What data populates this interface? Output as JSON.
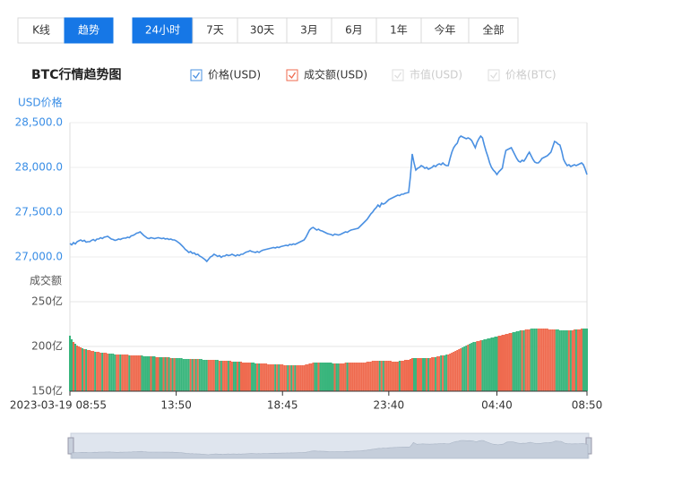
{
  "controls": {
    "view_tabs": [
      "K线",
      "趋势"
    ],
    "view_active": 1,
    "range_tabs": [
      "24小时",
      "7天",
      "30天",
      "3月",
      "6月",
      "1年",
      "今年",
      "全部"
    ],
    "range_active": 0
  },
  "chart_data": {
    "type": "line_volume",
    "title": "BTC行情趋势图",
    "inactive_legend": [
      "市值(USD)",
      "价格(BTC)"
    ],
    "y_label": "USD价格",
    "y2_label": "成交额",
    "ylim": [
      26750,
      28500
    ],
    "yticks": [
      {
        "value": 27000,
        "label": "27,000.0"
      },
      {
        "value": 27500,
        "label": "27,500.0"
      },
      {
        "value": 28000,
        "label": "28,000.0"
      },
      {
        "value": 28500,
        "label": "28,500.0"
      }
    ],
    "y2lim": [
      150,
      250
    ],
    "y2ticks": [
      {
        "value": 150,
        "label": "150亿"
      },
      {
        "value": 200,
        "label": "200亿"
      },
      {
        "value": 250,
        "label": "250亿"
      }
    ],
    "up_color": "#ef6a4e",
    "down_color": "#38b57c",
    "grid": true,
    "categories": [
      "2023-03-19 08:55",
      null,
      null,
      null,
      null,
      null,
      null,
      null,
      null,
      null,
      null,
      null,
      null,
      null,
      null,
      null,
      null,
      null,
      null,
      null,
      null,
      null,
      null,
      null,
      null,
      null,
      null,
      null,
      null,
      null,
      null,
      null,
      null,
      null,
      null,
      null,
      null,
      null,
      null,
      null,
      null,
      null,
      null,
      null,
      null,
      null,
      null,
      null,
      null,
      null,
      null,
      null,
      null,
      null,
      null,
      null,
      null,
      null,
      null,
      "13:50",
      null,
      null,
      null,
      null,
      null,
      null,
      null,
      null,
      null,
      null,
      null,
      null,
      null,
      null,
      null,
      null,
      null,
      null,
      null,
      null,
      null,
      null,
      null,
      null,
      null,
      null,
      null,
      null,
      null,
      null,
      null,
      null,
      null,
      null,
      null,
      null,
      null,
      null,
      null,
      null,
      null,
      null,
      null,
      null,
      null,
      null,
      null,
      null,
      null,
      null,
      null,
      null,
      null,
      null,
      null,
      null,
      null,
      null,
      "18:45",
      null,
      null,
      null,
      null,
      null,
      null,
      null,
      null,
      null,
      null,
      null,
      null,
      null,
      null,
      null,
      null,
      null,
      null,
      null,
      null,
      null,
      null,
      null,
      null,
      null,
      null,
      null,
      null,
      null,
      null,
      null,
      null,
      null,
      null,
      null,
      null,
      null,
      null,
      null,
      null,
      null,
      null,
      null,
      null,
      null,
      null,
      null,
      null,
      null,
      null,
      null,
      null,
      null,
      null,
      null,
      null,
      null,
      null,
      "23:40",
      null,
      null,
      null,
      null,
      null,
      null,
      null,
      null,
      null,
      null,
      null,
      null,
      null,
      null,
      null,
      null,
      null,
      null,
      null,
      null,
      null,
      null,
      null,
      null,
      null,
      null,
      null,
      null,
      null,
      null,
      null,
      null,
      null,
      null,
      null,
      null,
      null,
      null,
      null,
      null,
      null,
      null,
      null,
      null,
      null,
      null,
      null,
      null,
      null,
      null,
      null,
      null,
      null,
      null,
      null,
      null,
      null,
      null,
      null,
      "04:40",
      null,
      null,
      null,
      null,
      null,
      null,
      null,
      null,
      null,
      null,
      null,
      null,
      null,
      null,
      null,
      null,
      null,
      null,
      null,
      null,
      null,
      null,
      null,
      null,
      null,
      null,
      null,
      null,
      null,
      null,
      null,
      null,
      null,
      null,
      null,
      null,
      null,
      null,
      null,
      null,
      null,
      null,
      null,
      null,
      null,
      null,
      null,
      null,
      null,
      "08:50"
    ],
    "series": [
      {
        "name": "价格(USD)",
        "color": "#4a90e2",
        "values": [
          27150,
          27135,
          27160,
          27145,
          27170,
          27180,
          27190,
          27175,
          27185,
          27165,
          27170,
          27170,
          27185,
          27195,
          27180,
          27200,
          27200,
          27215,
          27205,
          27220,
          27225,
          27230,
          27215,
          27200,
          27195,
          27185,
          27190,
          27200,
          27195,
          27205,
          27210,
          27210,
          27220,
          27215,
          27235,
          27240,
          27250,
          27265,
          27270,
          27280,
          27260,
          27240,
          27225,
          27210,
          27205,
          27215,
          27210,
          27205,
          27210,
          27215,
          27210,
          27205,
          27210,
          27200,
          27205,
          27195,
          27200,
          27190,
          27190,
          27180,
          27165,
          27150,
          27130,
          27110,
          27085,
          27070,
          27050,
          27060,
          27040,
          27045,
          27025,
          27030,
          27010,
          27000,
          26985,
          26970,
          26950,
          26975,
          27000,
          27010,
          27030,
          27020,
          27005,
          27015,
          26995,
          27010,
          27010,
          27025,
          27015,
          27020,
          27030,
          27020,
          27010,
          27025,
          27015,
          27030,
          27030,
          27045,
          27055,
          27060,
          27070,
          27060,
          27055,
          27050,
          27060,
          27050,
          27065,
          27075,
          27080,
          27085,
          27090,
          27095,
          27100,
          27105,
          27100,
          27110,
          27105,
          27115,
          27120,
          27125,
          27130,
          27125,
          27140,
          27135,
          27145,
          27140,
          27150,
          27160,
          27170,
          27180,
          27190,
          27220,
          27260,
          27300,
          27320,
          27330,
          27315,
          27300,
          27310,
          27295,
          27290,
          27280,
          27270,
          27260,
          27255,
          27250,
          27240,
          27255,
          27250,
          27245,
          27250,
          27260,
          27270,
          27280,
          27275,
          27290,
          27300,
          27305,
          27310,
          27315,
          27320,
          27340,
          27360,
          27380,
          27400,
          27420,
          27450,
          27480,
          27500,
          27530,
          27550,
          27580,
          27560,
          27600,
          27590,
          27600,
          27620,
          27640,
          27650,
          27660,
          27670,
          27680,
          27690,
          27685,
          27700,
          27700,
          27710,
          27715,
          27720,
          27900,
          28150,
          28050,
          27970,
          27990,
          28000,
          28020,
          28010,
          27990,
          28000,
          27980,
          27990,
          28000,
          28020,
          28010,
          28030,
          28040,
          28030,
          28050,
          28030,
          28020,
          28020,
          28100,
          28170,
          28220,
          28250,
          28270,
          28330,
          28350,
          28340,
          28330,
          28320,
          28330,
          28320,
          28300,
          28260,
          28220,
          28280,
          28320,
          28350,
          28330,
          28250,
          28180,
          28120,
          28050,
          28000,
          27970,
          27950,
          27920,
          27950,
          27970,
          27990,
          28100,
          28190,
          28200,
          28210,
          28220,
          28180,
          28140,
          28100,
          28070,
          28060,
          28080,
          28070,
          28100,
          28140,
          28170,
          28130,
          28090,
          28060,
          28050,
          28050,
          28070,
          28100,
          28110,
          28120,
          28130,
          28150,
          28170,
          28230,
          28290,
          28280,
          28260,
          28250,
          28180,
          28090,
          28050,
          28020,
          28030,
          28010,
          28020,
          28030,
          28020,
          28030,
          28040,
          28050,
          28030,
          27980,
          27920
        ]
      },
      {
        "name": "成交额(USD)",
        "color": "#ef6a4e",
        "axis": "y2",
        "values": [
          212,
          208,
          205,
          203,
          201,
          200,
          199,
          198,
          197,
          197,
          196,
          196,
          195,
          195,
          194,
          194,
          194,
          193,
          193,
          193,
          193,
          192,
          192,
          192,
          192,
          191,
          191,
          191,
          191,
          191,
          191,
          191,
          191,
          190,
          190,
          190,
          190,
          190,
          190,
          190,
          190,
          189,
          189,
          189,
          189,
          189,
          189,
          189,
          188,
          188,
          188,
          188,
          188,
          188,
          188,
          188,
          187,
          187,
          187,
          187,
          187,
          187,
          187,
          186,
          186,
          186,
          186,
          186,
          186,
          186,
          186,
          186,
          186,
          186,
          185,
          185,
          185,
          185,
          185,
          185,
          185,
          185,
          185,
          184,
          184,
          184,
          184,
          184,
          184,
          184,
          183,
          183,
          183,
          183,
          183,
          183,
          182,
          182,
          182,
          182,
          182,
          182,
          182,
          181,
          181,
          181,
          181,
          181,
          181,
          181,
          180,
          180,
          180,
          180,
          180,
          180,
          180,
          180,
          180,
          179,
          179,
          179,
          179,
          179,
          179,
          179,
          179,
          179,
          179,
          179,
          179,
          180,
          180,
          181,
          181,
          182,
          182,
          182,
          182,
          182,
          182,
          182,
          182,
          182,
          182,
          182,
          181,
          181,
          181,
          181,
          181,
          181,
          181,
          182,
          182,
          182,
          182,
          182,
          182,
          182,
          182,
          182,
          182,
          182,
          182,
          183,
          183,
          183,
          184,
          184,
          184,
          184,
          184,
          184,
          184,
          184,
          184,
          184,
          184,
          183,
          183,
          183,
          183,
          184,
          184,
          184,
          185,
          185,
          185,
          186,
          187,
          187,
          187,
          187,
          187,
          187,
          187,
          187,
          187,
          187,
          187,
          188,
          188,
          188,
          189,
          189,
          190,
          190,
          190,
          191,
          191,
          192,
          193,
          194,
          195,
          196,
          197,
          198,
          199,
          200,
          201,
          202,
          203,
          204,
          205,
          205,
          206,
          206,
          207,
          207,
          208,
          208,
          209,
          209,
          210,
          210,
          211,
          211,
          212,
          212,
          213,
          213,
          214,
          214,
          215,
          215,
          216,
          216,
          217,
          217,
          218,
          218,
          218,
          219,
          219,
          219,
          220,
          220,
          220,
          220,
          220,
          220,
          220,
          220,
          220,
          220,
          219,
          219,
          219,
          219,
          219,
          219,
          218,
          218,
          218,
          218,
          218,
          218,
          218,
          218,
          219,
          219,
          219,
          219,
          220,
          220,
          220,
          220
        ]
      }
    ]
  }
}
